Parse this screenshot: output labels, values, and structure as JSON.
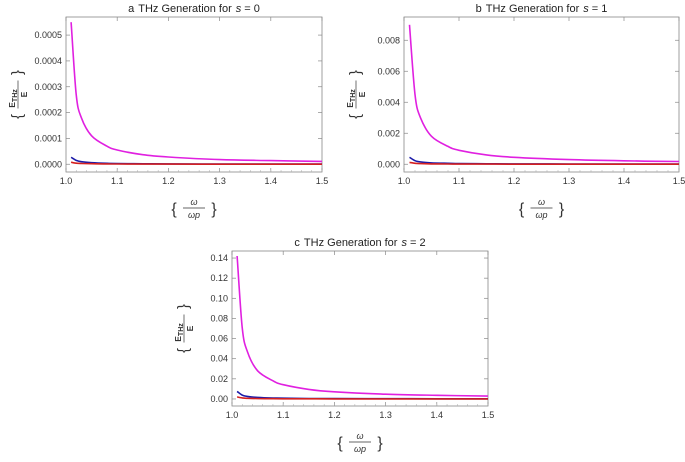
{
  "chart_data": [
    {
      "type": "line",
      "title_prefix": "a",
      "title_text": "THz Generation for",
      "title_var": "s",
      "title_value": "= 0",
      "ylabel_num": "E",
      "ylabel_sub": "THz",
      "ylabel_den": "E",
      "xlabel_num": "ω",
      "xlabel_den": "ωp",
      "xlim": [
        1.0,
        1.5
      ],
      "ylim": [
        -3e-05,
        0.00057
      ],
      "xticks": [
        1.0,
        1.1,
        1.2,
        1.3,
        1.4,
        1.5
      ],
      "xtick_labels": [
        "1.0",
        "1.1",
        "1.2",
        "1.3",
        "1.4",
        "1.5"
      ],
      "yticks": [
        0.0,
        0.0001,
        0.0002,
        0.0003,
        0.0004,
        0.0005
      ],
      "ytick_labels": [
        "0.0000",
        "0.0001",
        "0.0002",
        "0.0003",
        "0.0004",
        "0.0005"
      ],
      "x": [
        1.01,
        1.02,
        1.03,
        1.05,
        1.08,
        1.1,
        1.15,
        1.2,
        1.3,
        1.4,
        1.5
      ],
      "series": [
        {
          "color": "#e020e0",
          "values": [
            0.00055,
            0.00027,
            0.00018,
            0.00011,
            7e-05,
            5.5e-05,
            3.7e-05,
            2.8e-05,
            1.8e-05,
            1.4e-05,
            1.1e-05
          ]
        },
        {
          "color": "#1a1aa8",
          "values": [
            2.7e-05,
            1.5e-05,
            1e-05,
            6e-06,
            3.5e-06,
            2.8e-06,
            1.8e-06,
            1.3e-06,
            9e-07,
            7e-07,
            5e-07
          ]
        },
        {
          "color": "#d42020",
          "values": [
            8e-06,
            4e-06,
            3e-06,
            2e-06,
            1.2e-06,
            1e-06,
            6e-07,
            4e-07,
            3e-07,
            2e-07,
            2e-07
          ]
        }
      ]
    },
    {
      "type": "line",
      "title_prefix": "b",
      "title_text": "THz Generation for",
      "title_var": "s",
      "title_value": "= 1",
      "ylabel_num": "E",
      "ylabel_sub": "THz",
      "ylabel_den": "E",
      "xlabel_num": "ω",
      "xlabel_den": "ωp",
      "xlim": [
        1.0,
        1.5
      ],
      "ylim": [
        -0.0005,
        0.0095
      ],
      "xticks": [
        1.0,
        1.1,
        1.2,
        1.3,
        1.4,
        1.5
      ],
      "xtick_labels": [
        "1.0",
        "1.1",
        "1.2",
        "1.3",
        "1.4",
        "1.5"
      ],
      "yticks": [
        0.0,
        0.002,
        0.004,
        0.006,
        0.008
      ],
      "ytick_labels": [
        "0.000",
        "0.002",
        "0.004",
        "0.006",
        "0.008"
      ],
      "x": [
        1.01,
        1.02,
        1.03,
        1.05,
        1.08,
        1.1,
        1.15,
        1.2,
        1.3,
        1.4,
        1.5
      ],
      "series": [
        {
          "color": "#e020e0",
          "values": [
            0.009,
            0.0045,
            0.003,
            0.0018,
            0.00115,
            0.0009,
            0.0006,
            0.00045,
            0.0003,
            0.00022,
            0.00018
          ]
        },
        {
          "color": "#1a1aa8",
          "values": [
            0.00045,
            0.00023,
            0.00015,
            9e-05,
            6e-05,
            4.5e-05,
            3e-05,
            2.2e-05,
            1.5e-05,
            1.1e-05,
            9e-06
          ]
        },
        {
          "color": "#d42020",
          "values": [
            0.00012,
            6e-05,
            4e-05,
            2.5e-05,
            1.5e-05,
            1.2e-05,
            8e-06,
            6e-06,
            4e-06,
            3e-06,
            2.5e-06
          ]
        }
      ]
    },
    {
      "type": "line",
      "title_prefix": "c",
      "title_text": "THz Generation for",
      "title_var": "s",
      "title_value": "= 2",
      "ylabel_num": "E",
      "ylabel_sub": "THz",
      "ylabel_den": "E",
      "xlabel_num": "ω",
      "xlabel_den": "ωp",
      "xlim": [
        1.0,
        1.5
      ],
      "ylim": [
        -0.007,
        0.147
      ],
      "xticks": [
        1.0,
        1.1,
        1.2,
        1.3,
        1.4,
        1.5
      ],
      "xtick_labels": [
        "1.0",
        "1.1",
        "1.2",
        "1.3",
        "1.4",
        "1.5"
      ],
      "yticks": [
        0.0,
        0.02,
        0.04,
        0.06,
        0.08,
        0.1,
        0.12,
        0.14
      ],
      "ytick_labels": [
        "0.00",
        "0.02",
        "0.04",
        "0.06",
        "0.08",
        "0.10",
        "0.12",
        "0.14"
      ],
      "x": [
        1.01,
        1.02,
        1.03,
        1.05,
        1.08,
        1.1,
        1.15,
        1.2,
        1.3,
        1.4,
        1.5
      ],
      "series": [
        {
          "color": "#e020e0",
          "values": [
            0.142,
            0.071,
            0.047,
            0.028,
            0.018,
            0.0142,
            0.0095,
            0.0071,
            0.0047,
            0.0036,
            0.0028
          ]
        },
        {
          "color": "#1a1aa8",
          "values": [
            0.0075,
            0.0038,
            0.0025,
            0.0015,
            0.00095,
            0.00075,
            0.0005,
            0.00038,
            0.00025,
            0.00019,
            0.00015
          ]
        },
        {
          "color": "#d42020",
          "values": [
            0.002,
            0.001,
            0.0007,
            0.0004,
            0.00025,
            0.0002,
            0.00013,
            0.0001,
            7e-05,
            5e-05,
            4e-05
          ]
        }
      ]
    }
  ]
}
